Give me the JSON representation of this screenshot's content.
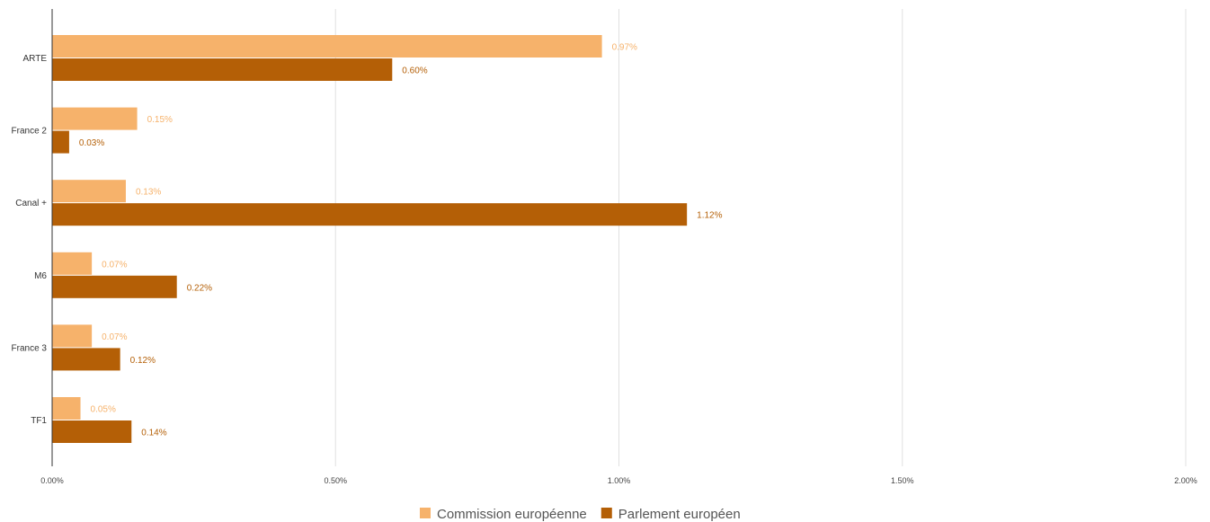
{
  "chart_data": {
    "type": "bar",
    "orientation": "horizontal",
    "categories": [
      "ARTE",
      "France 2",
      "Canal +",
      "M6",
      "France 3",
      "TF1"
    ],
    "series": [
      {
        "name": "Commission européenne",
        "color": "#F6B26B",
        "values": [
          0.97,
          0.15,
          0.13,
          0.07,
          0.07,
          0.05
        ],
        "labels": [
          "0.97%",
          "0.15%",
          "0.13%",
          "0.07%",
          "0.07%",
          "0.05%"
        ]
      },
      {
        "name": "Parlement européen",
        "color": "#B45F06",
        "values": [
          0.6,
          0.03,
          1.12,
          0.22,
          0.12,
          0.14
        ],
        "labels": [
          "0.60%",
          "0.03%",
          "1.12%",
          "0.22%",
          "0.12%",
          "0.14%"
        ]
      }
    ],
    "xlim": [
      0,
      2.0
    ],
    "x_ticks": [
      0,
      0.5,
      1.0,
      1.5,
      2.0
    ],
    "x_tick_labels": [
      "0.00%",
      "0.50%",
      "1.00%",
      "1.50%",
      "2.00%"
    ],
    "grid": true,
    "legend_position": "bottom"
  }
}
